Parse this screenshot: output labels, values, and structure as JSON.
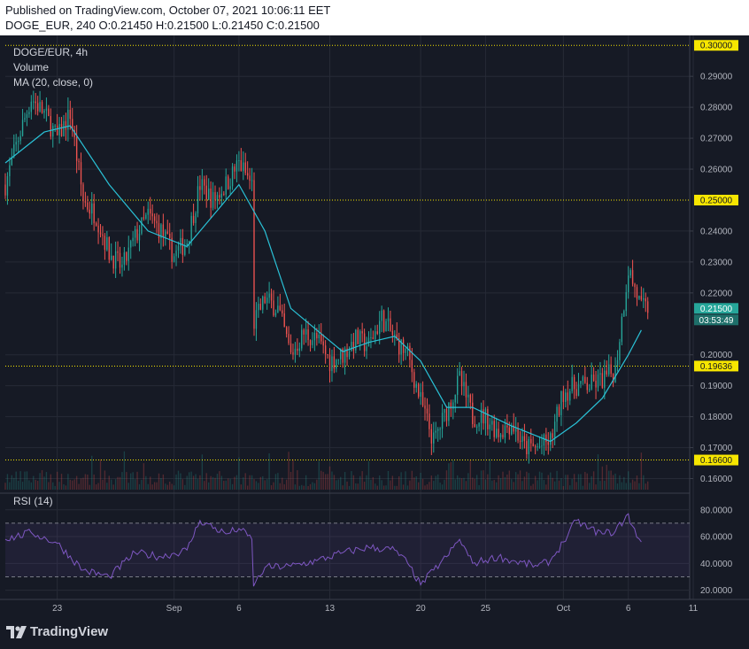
{
  "header": {
    "published_line": "Published on TradingView.com, October 07, 2021 10:06:11 EET",
    "ohlc_line": "DOGE_EUR, 240  O:0.21450  H:0.21500  L:0.21450  C:0.21500"
  },
  "legend": {
    "symbol": "DOGE/EUR, 4h",
    "volume": "Volume",
    "ma": "MA (20, close, 0)",
    "rsi": "RSI (14)"
  },
  "footer": {
    "logo_text": "TradingView",
    "logo_icon": "tradingview-logo-icon"
  },
  "colors": {
    "background": "#161a25",
    "up_candle": "#26a69a",
    "down_candle": "#ef5350",
    "ma_line": "#2ac1d6",
    "rsi_line": "#7e57c2",
    "level_line": "#f7e600",
    "price_tag_green": "#26a69a"
  },
  "chart_data": [
    {
      "type": "candlestick",
      "title": "DOGE/EUR, 4h",
      "x_axis": {
        "tick_labels": [
          "23",
          "Sep",
          "6",
          "13",
          "20",
          "25",
          "Oct",
          "6",
          "11"
        ],
        "start": "2021-08-19",
        "end": "2021-10-11"
      },
      "y_axis": {
        "tick_labels": [
          "0.29000",
          "0.28000",
          "0.27000",
          "0.26000",
          "0.24000",
          "0.23000",
          "0.22000",
          "0.20000",
          "0.19000",
          "0.18000",
          "0.17000",
          "0.16000"
        ],
        "ylim": [
          0.157,
          0.3015
        ]
      },
      "horizontal_levels": [
        "0.30000",
        "0.25000",
        "0.19636",
        "0.16600"
      ],
      "price_tags": {
        "last_price": "0.21500",
        "countdown": "03:53:49"
      },
      "indicators": [
        "Volume",
        "MA (20, close, 0)"
      ],
      "price_path": [
        [
          "2021-08-19",
          0.255
        ],
        [
          "2021-08-20",
          0.27
        ],
        [
          "2021-08-21",
          0.283
        ],
        [
          "2021-08-22",
          0.278
        ],
        [
          "2021-08-23",
          0.27
        ],
        [
          "2021-08-24",
          0.278
        ],
        [
          "2021-08-25",
          0.25
        ],
        [
          "2021-08-26",
          0.245
        ],
        [
          "2021-08-27",
          0.233
        ],
        [
          "2021-08-28",
          0.228
        ],
        [
          "2021-08-29",
          0.238
        ],
        [
          "2021-08-30",
          0.245
        ],
        [
          "2021-08-31",
          0.24
        ],
        [
          "2021-09-01",
          0.232
        ],
        [
          "2021-09-02",
          0.237
        ],
        [
          "2021-09-03",
          0.255
        ],
        [
          "2021-09-04",
          0.25
        ],
        [
          "2021-09-05",
          0.255
        ],
        [
          "2021-09-06",
          0.262
        ],
        [
          "2021-09-07",
          0.255
        ],
        [
          "2021-09-07",
          0.21
        ],
        [
          "2021-09-08",
          0.218
        ],
        [
          "2021-09-09",
          0.215
        ],
        [
          "2021-09-10",
          0.2
        ],
        [
          "2021-09-11",
          0.207
        ],
        [
          "2021-09-12",
          0.205
        ],
        [
          "2021-09-13",
          0.198
        ],
        [
          "2021-09-14",
          0.2
        ],
        [
          "2021-09-15",
          0.205
        ],
        [
          "2021-09-16",
          0.203
        ],
        [
          "2021-09-17",
          0.212
        ],
        [
          "2021-09-18",
          0.205
        ],
        [
          "2021-09-19",
          0.2
        ],
        [
          "2021-09-20",
          0.185
        ],
        [
          "2021-09-21",
          0.172
        ],
        [
          "2021-09-22",
          0.182
        ],
        [
          "2021-09-23",
          0.192
        ],
        [
          "2021-09-24",
          0.18
        ],
        [
          "2021-09-25",
          0.18
        ],
        [
          "2021-09-26",
          0.175
        ],
        [
          "2021-09-27",
          0.178
        ],
        [
          "2021-09-28",
          0.17
        ],
        [
          "2021-09-29",
          0.17
        ],
        [
          "2021-09-30",
          0.172
        ],
        [
          "2021-10-01",
          0.188
        ],
        [
          "2021-10-02",
          0.19
        ],
        [
          "2021-10-03",
          0.19
        ],
        [
          "2021-10-04",
          0.192
        ],
        [
          "2021-10-05",
          0.195
        ],
        [
          "2021-10-06",
          0.228
        ],
        [
          "2021-10-07",
          0.215
        ]
      ],
      "ma_path": [
        [
          "2021-08-19",
          0.262
        ],
        [
          "2021-08-22",
          0.272
        ],
        [
          "2021-08-24",
          0.274
        ],
        [
          "2021-08-27",
          0.255
        ],
        [
          "2021-08-30",
          0.24
        ],
        [
          "2021-09-02",
          0.235
        ],
        [
          "2021-09-04",
          0.245
        ],
        [
          "2021-09-06",
          0.255
        ],
        [
          "2021-09-08",
          0.24
        ],
        [
          "2021-09-10",
          0.215
        ],
        [
          "2021-09-12",
          0.208
        ],
        [
          "2021-09-14",
          0.201
        ],
        [
          "2021-09-16",
          0.204
        ],
        [
          "2021-09-18",
          0.206
        ],
        [
          "2021-09-20",
          0.198
        ],
        [
          "2021-09-22",
          0.183
        ],
        [
          "2021-09-24",
          0.183
        ],
        [
          "2021-09-27",
          0.177
        ],
        [
          "2021-09-30",
          0.172
        ],
        [
          "2021-10-02",
          0.178
        ],
        [
          "2021-10-04",
          0.186
        ],
        [
          "2021-10-06",
          0.2
        ],
        [
          "2021-10-07",
          0.208
        ]
      ]
    },
    {
      "type": "line",
      "title": "RSI (14)",
      "y_axis": {
        "tick_labels": [
          "80.0000",
          "60.0000",
          "40.0000",
          "20.0000"
        ],
        "ylim": [
          15.8,
          90.4
        ]
      },
      "bands": [
        30,
        70
      ],
      "series": [
        {
          "name": "RSI (14)",
          "points": [
            [
              "2021-08-19",
              58
            ],
            [
              "2021-08-21",
              63
            ],
            [
              "2021-08-23",
              55
            ],
            [
              "2021-08-25",
              35
            ],
            [
              "2021-08-27",
              30
            ],
            [
              "2021-08-29",
              48
            ],
            [
              "2021-08-31",
              45
            ],
            [
              "2021-09-02",
              50
            ],
            [
              "2021-09-03",
              72
            ],
            [
              "2021-09-05",
              62
            ],
            [
              "2021-09-06",
              66
            ],
            [
              "2021-09-07",
              58
            ],
            [
              "2021-09-07",
              23
            ],
            [
              "2021-09-08",
              37
            ],
            [
              "2021-09-10",
              38
            ],
            [
              "2021-09-12",
              42
            ],
            [
              "2021-09-14",
              48
            ],
            [
              "2021-09-16",
              52
            ],
            [
              "2021-09-18",
              50
            ],
            [
              "2021-09-19",
              40
            ],
            [
              "2021-09-20",
              24
            ],
            [
              "2021-09-21",
              35
            ],
            [
              "2021-09-22",
              45
            ],
            [
              "2021-09-23",
              58
            ],
            [
              "2021-09-24",
              40
            ],
            [
              "2021-09-26",
              45
            ],
            [
              "2021-09-27",
              42
            ],
            [
              "2021-09-29",
              38
            ],
            [
              "2021-09-30",
              42
            ],
            [
              "2021-10-01",
              56
            ],
            [
              "2021-10-02",
              72
            ],
            [
              "2021-10-03",
              66
            ],
            [
              "2021-10-04",
              62
            ],
            [
              "2021-10-05",
              64
            ],
            [
              "2021-10-06",
              77
            ],
            [
              "2021-10-06",
              70
            ],
            [
              "2021-10-07",
              56
            ]
          ]
        }
      ]
    }
  ]
}
